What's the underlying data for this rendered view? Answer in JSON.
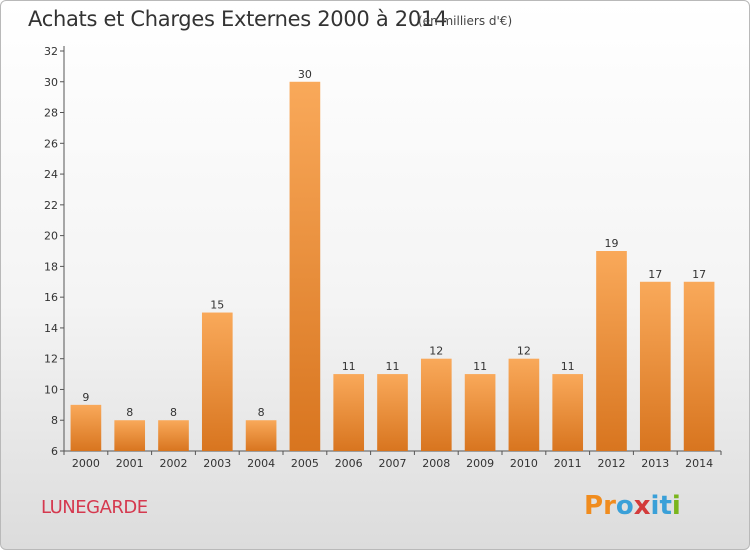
{
  "title": "Achats et Charges Externes 2000 à 2014",
  "subtitle": "(en milliers d'€)",
  "commune": "LUNEGARDE",
  "brand": {
    "letters": [
      "P",
      "r",
      "o",
      "x",
      "i",
      "t",
      "i"
    ],
    "colors": [
      "#f08c1e",
      "#f08c1e",
      "#3aa0d8",
      "#d33b3b",
      "#3aa0d8",
      "#3aa0d8",
      "#7ab51d"
    ]
  },
  "colors": {
    "bar_light": "#f9a95a",
    "bar_dark": "#d8751f",
    "axis": "#555555",
    "grid": "#e8e8e8",
    "text": "#333333",
    "commune": "#d5394f"
  },
  "chart_data": {
    "type": "bar",
    "title": "Achats et Charges Externes 2000 à 2014",
    "subtitle": "(en milliers d'€)",
    "categories": [
      "2000",
      "2001",
      "2002",
      "2003",
      "2004",
      "2005",
      "2006",
      "2007",
      "2008",
      "2009",
      "2010",
      "2011",
      "2012",
      "2013",
      "2014"
    ],
    "values": [
      9,
      8,
      8,
      15,
      8,
      30,
      11,
      11,
      12,
      11,
      12,
      11,
      19,
      17,
      17
    ],
    "ylim": [
      6,
      32
    ],
    "yticks": [
      6,
      8,
      10,
      12,
      14,
      16,
      18,
      20,
      22,
      24,
      26,
      28,
      30,
      32
    ],
    "grid": false,
    "data_labels": true
  }
}
